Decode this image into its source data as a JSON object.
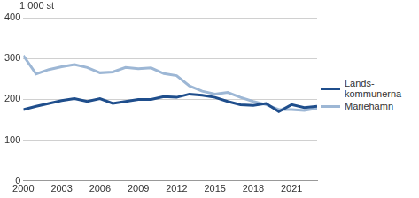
{
  "chart_data": {
    "type": "line",
    "y_label": "1 000 st",
    "categories": [
      "2000",
      null,
      null,
      "2003",
      null,
      null,
      "2006",
      null,
      null,
      "2009",
      null,
      null,
      "2012",
      null,
      null,
      "2015",
      null,
      null,
      "2018",
      null,
      null,
      "2021",
      null,
      null
    ],
    "series": [
      {
        "name": "Lands-\nkommunerna",
        "color": "#1f4e8c",
        "values": [
          175,
          183,
          190,
          197,
          202,
          195,
          202,
          190,
          195,
          200,
          200,
          207,
          205,
          213,
          210,
          205,
          195,
          187,
          185,
          190,
          170,
          187,
          180,
          183
        ]
      },
      {
        "name": "Mariehamn",
        "color": "#9db7d5",
        "values": [
          307,
          262,
          273,
          280,
          285,
          278,
          265,
          267,
          278,
          275,
          277,
          263,
          258,
          233,
          220,
          213,
          217,
          205,
          195,
          187,
          175,
          175,
          173,
          178
        ]
      }
    ],
    "ylim": [
      0,
      400
    ],
    "yticks": [
      0,
      100,
      200,
      300,
      400
    ],
    "grid": true,
    "legend": "right"
  }
}
